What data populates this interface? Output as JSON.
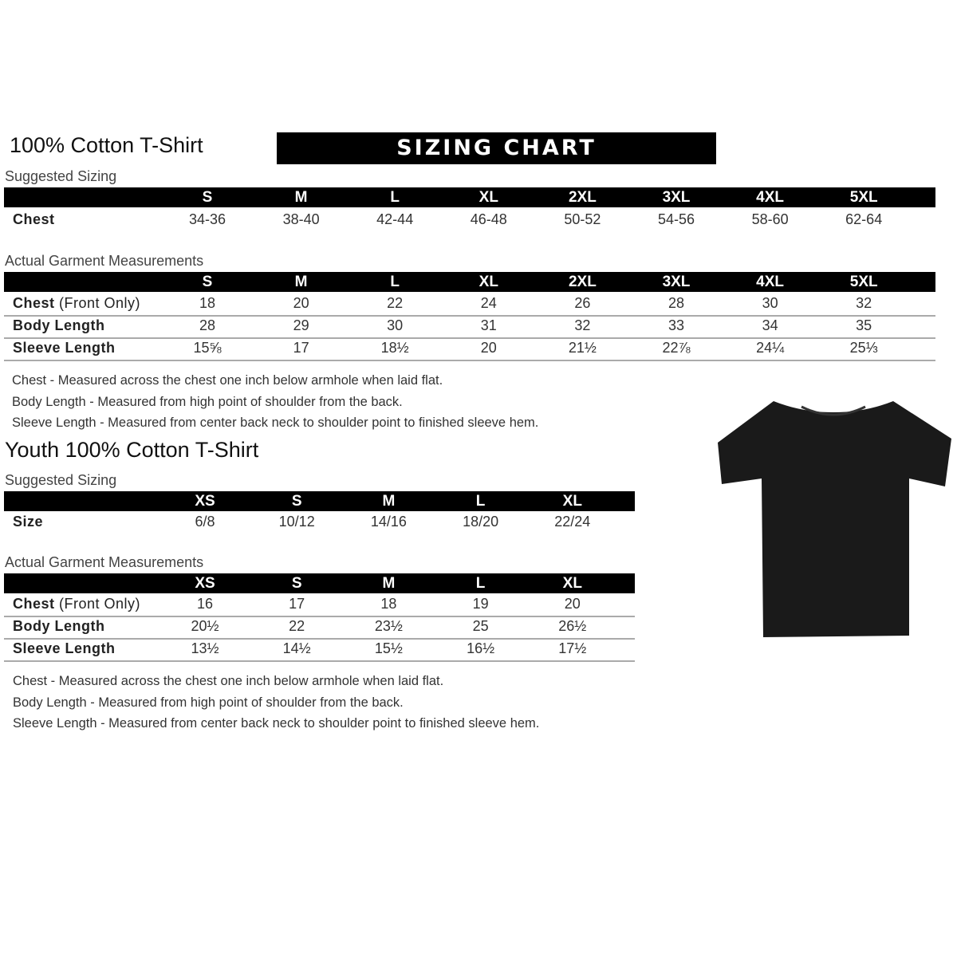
{
  "banner": "SIZING CHART",
  "adult": {
    "title": "100% Cotton T-Shirt",
    "suggested_label": "Suggested Sizing",
    "sizes": [
      "S",
      "M",
      "L",
      "XL",
      "2XL",
      "3XL",
      "4XL",
      "5XL"
    ],
    "suggested_rows": [
      {
        "label": "Chest",
        "values": [
          "34-36",
          "38-40",
          "42-44",
          "46-48",
          "50-52",
          "54-56",
          "58-60",
          "62-64"
        ]
      }
    ],
    "actual_label": "Actual Garment Measurements",
    "actual_rows": [
      {
        "label": "Chest",
        "label_extra": "(Front Only)",
        "values": [
          "18",
          "20",
          "22",
          "24",
          "26",
          "28",
          "30",
          "32"
        ]
      },
      {
        "label": "Body Length",
        "values": [
          "28",
          "29",
          "30",
          "31",
          "32",
          "33",
          "34",
          "35"
        ]
      },
      {
        "label": "Sleeve Length",
        "values": [
          "15⅝",
          "17",
          "18½",
          "20",
          "21½",
          "22⅞",
          "24¼",
          "25⅓"
        ]
      }
    ],
    "notes": [
      "Chest - Measured across the chest one inch below armhole when laid flat.",
      "Body Length - Measured from high point of shoulder from the back.",
      "Sleeve Length - Measured from center back neck to shoulder point to finished sleeve hem."
    ]
  },
  "youth": {
    "title": "Youth 100% Cotton T-Shirt",
    "suggested_label": "Suggested Sizing",
    "sizes": [
      "XS",
      "S",
      "M",
      "L",
      "XL"
    ],
    "suggested_rows": [
      {
        "label": "Size",
        "values": [
          "6/8",
          "10/12",
          "14/16",
          "18/20",
          "22/24"
        ]
      }
    ],
    "actual_label": "Actual Garment Measurements",
    "actual_rows": [
      {
        "label": "Chest",
        "label_extra": "(Front Only)",
        "values": [
          "16",
          "17",
          "18",
          "19",
          "20"
        ]
      },
      {
        "label": "Body Length",
        "values": [
          "20½",
          "22",
          "23½",
          "25",
          "26½"
        ]
      },
      {
        "label": "Sleeve Length",
        "values": [
          "13½",
          "14½",
          "15½",
          "16½",
          "17½"
        ]
      }
    ],
    "notes": [
      "Chest - Measured across the chest one inch below armhole when laid flat.",
      "Body Length - Measured from high point of shoulder from the back.",
      "Sleeve Length - Measured from center back neck to shoulder point to finished sleeve hem."
    ]
  },
  "tshirt_color": "#1a1a1a"
}
